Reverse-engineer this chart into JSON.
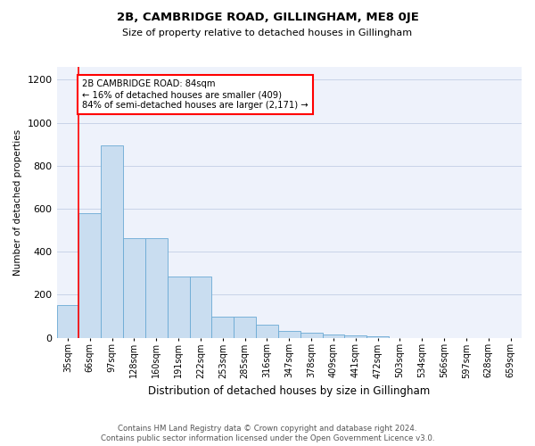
{
  "title": "2B, CAMBRIDGE ROAD, GILLINGHAM, ME8 0JE",
  "subtitle": "Size of property relative to detached houses in Gillingham",
  "xlabel": "Distribution of detached houses by size in Gillingham",
  "ylabel": "Number of detached properties",
  "footer_line1": "Contains HM Land Registry data © Crown copyright and database right 2024.",
  "footer_line2": "Contains public sector information licensed under the Open Government Licence v3.0.",
  "categories": [
    "35sqm",
    "66sqm",
    "97sqm",
    "128sqm",
    "160sqm",
    "191sqm",
    "222sqm",
    "253sqm",
    "285sqm",
    "316sqm",
    "347sqm",
    "378sqm",
    "409sqm",
    "441sqm",
    "472sqm",
    "503sqm",
    "534sqm",
    "566sqm",
    "597sqm",
    "628sqm",
    "659sqm"
  ],
  "values": [
    150,
    580,
    895,
    465,
    465,
    285,
    285,
    100,
    100,
    62,
    30,
    25,
    15,
    12,
    8,
    0,
    0,
    0,
    0,
    0,
    0
  ],
  "bar_color": "#c9ddf0",
  "bar_edge_color": "#6aaad4",
  "grid_color": "#c8d4e8",
  "background_color": "#eef2fb",
  "annotation_text": "2B CAMBRIDGE ROAD: 84sqm\n← 16% of detached houses are smaller (409)\n84% of semi-detached houses are larger (2,171) →",
  "annotation_box_color": "white",
  "annotation_box_edge_color": "red",
  "vline_color": "red",
  "vline_x_index": 1,
  "ylim": [
    0,
    1260
  ],
  "yticks": [
    0,
    200,
    400,
    600,
    800,
    1000,
    1200
  ]
}
